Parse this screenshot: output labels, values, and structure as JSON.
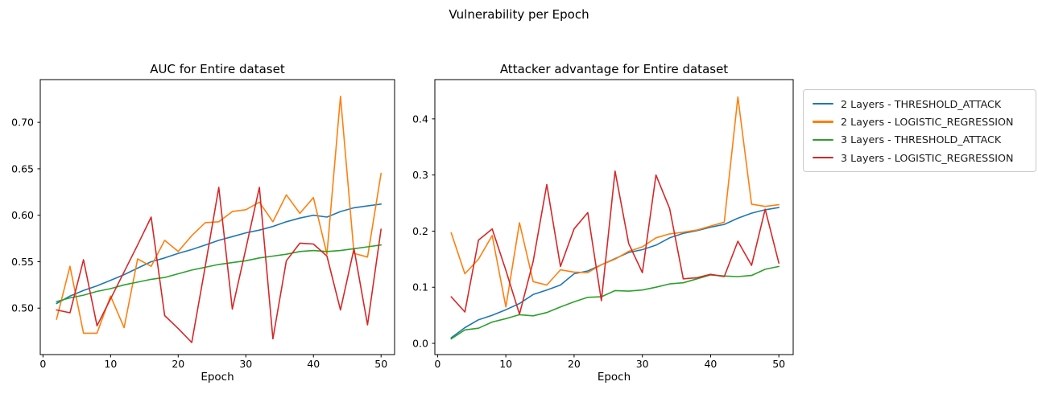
{
  "figure": {
    "suptitle": "Vulnerability per Epoch",
    "background_color": "#ffffff",
    "text_color": "#000000"
  },
  "legend": {
    "position": "outside-top-right",
    "border_color": "#c9c9c9",
    "entries": [
      {
        "label": "2 Layers - THRESHOLD_ATTACK",
        "color": "#1f77b4"
      },
      {
        "label": "2 Layers - LOGISTIC_REGRESSION",
        "color": "#ff7f0e"
      },
      {
        "label": "3 Layers - THRESHOLD_ATTACK",
        "color": "#2ca02c"
      },
      {
        "label": "3 Layers - LOGISTIC_REGRESSION",
        "color": "#d62728"
      }
    ]
  },
  "chart_data": [
    {
      "type": "line",
      "id": "auc-chart",
      "title": "AUC for Entire dataset",
      "xlabel": "Epoch",
      "ylabel": "",
      "grid": false,
      "x": [
        2,
        4,
        6,
        8,
        10,
        12,
        14,
        16,
        18,
        20,
        22,
        24,
        26,
        28,
        30,
        32,
        34,
        36,
        38,
        40,
        42,
        44,
        46,
        48,
        50
      ],
      "xticks": [
        0,
        10,
        20,
        30,
        40,
        50
      ],
      "xtick_labels": [
        "0",
        "10",
        "20",
        "30",
        "40",
        "50"
      ],
      "yticks": [
        0.5,
        0.55,
        0.6,
        0.65,
        0.7
      ],
      "ytick_labels": [
        "0.50",
        "0.55",
        "0.60",
        "0.65",
        "0.70"
      ],
      "xlim": [
        -0.4,
        52.0
      ],
      "ylim": [
        0.45,
        0.746
      ],
      "series": [
        {
          "name": "2 Layers - THRESHOLD_ATTACK",
          "color": "#1f77b4",
          "values": [
            0.505,
            0.513,
            0.519,
            0.524,
            0.53,
            0.536,
            0.543,
            0.55,
            0.554,
            0.559,
            0.563,
            0.568,
            0.573,
            0.577,
            0.581,
            0.584,
            0.588,
            0.593,
            0.597,
            0.6,
            0.598,
            0.604,
            0.608,
            0.61,
            0.612
          ]
        },
        {
          "name": "2 Layers - LOGISTIC_REGRESSION",
          "color": "#ff7f0e",
          "values": [
            0.488,
            0.545,
            0.473,
            0.473,
            0.513,
            0.479,
            0.553,
            0.545,
            0.573,
            0.561,
            0.578,
            0.592,
            0.593,
            0.604,
            0.606,
            0.614,
            0.593,
            0.622,
            0.602,
            0.619,
            0.558,
            0.728,
            0.559,
            0.555,
            0.645
          ]
        },
        {
          "name": "3 Layers - THRESHOLD_ATTACK",
          "color": "#2ca02c",
          "values": [
            0.507,
            0.511,
            0.514,
            0.518,
            0.521,
            0.525,
            0.528,
            0.531,
            0.533,
            0.537,
            0.541,
            0.544,
            0.547,
            0.549,
            0.551,
            0.554,
            0.556,
            0.558,
            0.561,
            0.562,
            0.561,
            0.562,
            0.564,
            0.566,
            0.568
          ]
        },
        {
          "name": "3 Layers - LOGISTIC_REGRESSION",
          "color": "#d62728",
          "values": [
            0.498,
            0.495,
            0.552,
            0.481,
            0.51,
            0.539,
            0.568,
            0.598,
            0.492,
            0.478,
            0.463,
            0.545,
            0.63,
            0.499,
            0.564,
            0.63,
            0.467,
            0.551,
            0.57,
            0.569,
            0.556,
            0.498,
            0.564,
            0.482,
            0.585
          ]
        }
      ]
    },
    {
      "type": "line",
      "id": "advantage-chart",
      "title": "Attacker advantage for Entire dataset",
      "xlabel": "Epoch",
      "ylabel": "",
      "grid": false,
      "x": [
        2,
        4,
        6,
        8,
        10,
        12,
        14,
        16,
        18,
        20,
        22,
        24,
        26,
        28,
        30,
        32,
        34,
        36,
        38,
        40,
        42,
        44,
        46,
        48,
        50
      ],
      "xticks": [
        0,
        10,
        20,
        30,
        40,
        50
      ],
      "xtick_labels": [
        "0",
        "10",
        "20",
        "30",
        "40",
        "50"
      ],
      "yticks": [
        0.0,
        0.1,
        0.2,
        0.3,
        0.4
      ],
      "ytick_labels": [
        "0.0",
        "0.1",
        "0.2",
        "0.3",
        "0.4"
      ],
      "xlim": [
        -0.4,
        52.1
      ],
      "ylim": [
        -0.02,
        0.47
      ],
      "series": [
        {
          "name": "2 Layers - THRESHOLD_ATTACK",
          "color": "#1f77b4",
          "values": [
            0.01,
            0.028,
            0.042,
            0.05,
            0.06,
            0.071,
            0.087,
            0.095,
            0.104,
            0.124,
            0.129,
            0.14,
            0.151,
            0.162,
            0.167,
            0.175,
            0.188,
            0.196,
            0.201,
            0.207,
            0.212,
            0.223,
            0.232,
            0.238,
            0.242
          ]
        },
        {
          "name": "2 Layers - LOGISTIC_REGRESSION",
          "color": "#ff7f0e",
          "values": [
            0.197,
            0.124,
            0.15,
            0.192,
            0.065,
            0.215,
            0.11,
            0.104,
            0.131,
            0.127,
            0.126,
            0.14,
            0.15,
            0.164,
            0.172,
            0.188,
            0.195,
            0.198,
            0.202,
            0.209,
            0.216,
            0.439,
            0.248,
            0.244,
            0.247
          ]
        },
        {
          "name": "3 Layers - THRESHOLD_ATTACK",
          "color": "#2ca02c",
          "values": [
            0.008,
            0.024,
            0.027,
            0.038,
            0.044,
            0.051,
            0.049,
            0.055,
            0.065,
            0.074,
            0.082,
            0.083,
            0.094,
            0.093,
            0.095,
            0.1,
            0.106,
            0.108,
            0.115,
            0.122,
            0.12,
            0.119,
            0.121,
            0.132,
            0.137
          ]
        },
        {
          "name": "3 Layers - LOGISTIC_REGRESSION",
          "color": "#d62728",
          "values": [
            0.083,
            0.056,
            0.184,
            0.204,
            0.13,
            0.052,
            0.146,
            0.283,
            0.137,
            0.204,
            0.233,
            0.076,
            0.307,
            0.178,
            0.126,
            0.3,
            0.24,
            0.115,
            0.117,
            0.123,
            0.119,
            0.182,
            0.139,
            0.239,
            0.143
          ]
        }
      ]
    }
  ]
}
